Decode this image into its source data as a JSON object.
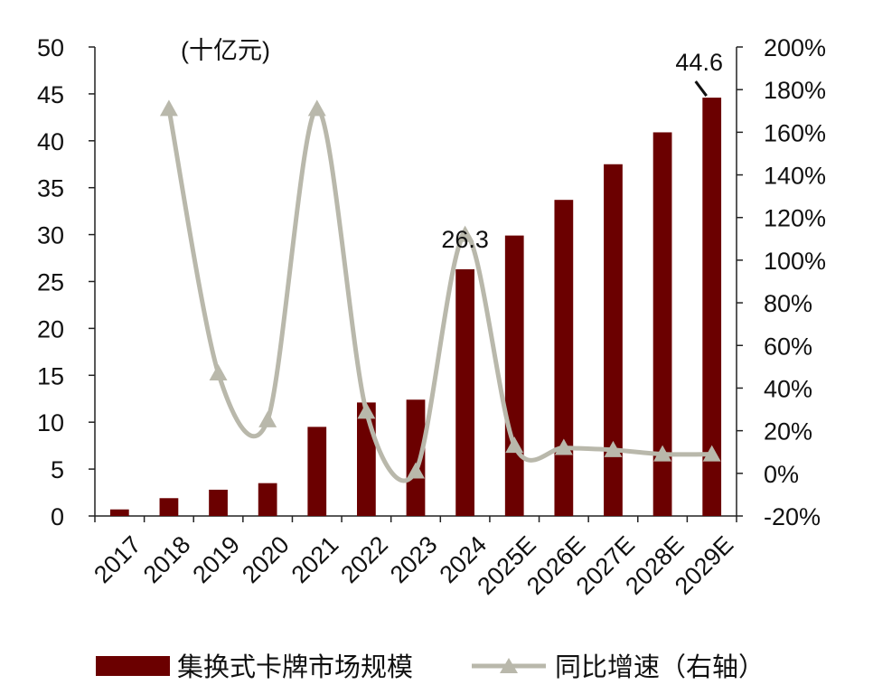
{
  "chart_data": {
    "type": "bar+line",
    "unit_label": "(十亿元)",
    "categories": [
      "2017",
      "2018",
      "2019",
      "2020",
      "2021",
      "2022",
      "2023",
      "2024",
      "2025E",
      "2026E",
      "2027E",
      "2028E",
      "2029E"
    ],
    "series": [
      {
        "name": "集换式卡牌市场规模",
        "type": "bar",
        "axis": "left",
        "color": "#6b0000",
        "values": [
          0.7,
          1.9,
          2.8,
          3.5,
          9.5,
          12.1,
          12.4,
          26.3,
          29.9,
          33.7,
          37.5,
          40.9,
          44.6
        ]
      },
      {
        "name": "同比增速（右轴）",
        "type": "line",
        "axis": "right",
        "color": "#b9b8ab",
        "values": [
          null,
          171,
          47,
          25,
          171,
          29,
          1,
          112,
          13,
          12,
          11,
          9,
          9
        ]
      }
    ],
    "data_labels": [
      {
        "index": 7,
        "text": "26.3"
      },
      {
        "index": 12,
        "text": "44.6"
      }
    ],
    "y_left": {
      "min": 0,
      "max": 50,
      "step": 5,
      "ticks": [
        "0",
        "5",
        "10",
        "15",
        "20",
        "25",
        "30",
        "35",
        "40",
        "45",
        "50"
      ]
    },
    "y_right": {
      "min": -20,
      "max": 200,
      "step": 20,
      "ticks": [
        "-20%",
        "0%",
        "20%",
        "40%",
        "60%",
        "80%",
        "100%",
        "120%",
        "140%",
        "160%",
        "180%",
        "200%"
      ]
    },
    "legend": {
      "position": "bottom"
    },
    "grid": false
  }
}
